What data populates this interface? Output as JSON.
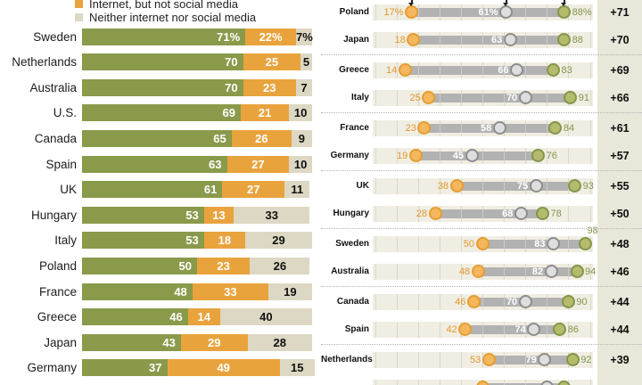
{
  "colors": {
    "green_bar": "#8a9a4b",
    "orange_bar": "#e9a33d",
    "beige_bar": "#dcd8c3",
    "strip_bg": "#f0eee3",
    "range_bar": "#b2b2b2",
    "diff_band_bg": "#e9e7d9",
    "orange_dot": "#e59d32",
    "gray_dot": "#8d8d8d",
    "green_dot": "#85954a"
  },
  "chart_data": [
    {
      "type": "bar",
      "orientation": "horizontal",
      "stacked": true,
      "xlim": [
        0,
        100
      ],
      "grid": false,
      "legend_position": "top",
      "legend": [
        {
          "label": "Internet, but not social media",
          "color_hex": "#e9a33d"
        },
        {
          "label": "Neither internet nor social media",
          "color_hex": "#dcd8c3"
        }
      ],
      "categories": [
        "Sweden",
        "Netherlands",
        "Australia",
        "U.S.",
        "Canada",
        "Spain",
        "UK",
        "Hungary",
        "Italy",
        "Poland",
        "France",
        "Greece",
        "Japan",
        "Germany"
      ],
      "series": [
        {
          "name": "green-segment",
          "color_hex": "#8a9a4b",
          "values": [
            71,
            70,
            70,
            69,
            65,
            63,
            61,
            53,
            53,
            50,
            48,
            46,
            43,
            37
          ]
        },
        {
          "name": "Internet, but not social media",
          "color_hex": "#e9a33d",
          "values": [
            22,
            25,
            23,
            21,
            26,
            27,
            27,
            13,
            18,
            23,
            33,
            14,
            29,
            49
          ]
        },
        {
          "name": "Neither internet nor social media",
          "color_hex": "#dcd8c3",
          "values": [
            7,
            5,
            7,
            10,
            9,
            10,
            11,
            33,
            29,
            26,
            19,
            40,
            28,
            15
          ]
        }
      ],
      "value_labels": [
        [
          "71%",
          "22%",
          "7%"
        ],
        [
          "70",
          "25",
          "5"
        ],
        [
          "70",
          "23",
          "7"
        ],
        [
          "69",
          "21",
          "10"
        ],
        [
          "65",
          "26",
          "9"
        ],
        [
          "63",
          "27",
          "10"
        ],
        [
          "61",
          "27",
          "11"
        ],
        [
          "53",
          "13",
          "33"
        ],
        [
          "53",
          "18",
          "29"
        ],
        [
          "50",
          "23",
          "26"
        ],
        [
          "48",
          "33",
          "19"
        ],
        [
          "46",
          "14",
          "40"
        ],
        [
          "43",
          "29",
          "28"
        ],
        [
          "37",
          "49",
          "15"
        ]
      ]
    },
    {
      "type": "scatter",
      "subtype": "dot-plot-range",
      "xlim": [
        0,
        100
      ],
      "categories": [
        "Poland",
        "Japan",
        "Greece",
        "Italy",
        "France",
        "Germany",
        "UK",
        "Hungary",
        "Sweden",
        "Australia",
        "Canada",
        "Spain",
        "Netherlands"
      ],
      "series": [
        {
          "name": "orange-dot",
          "color_hex": "#e59d32",
          "values": [
            17,
            18,
            14,
            25,
            23,
            19,
            38,
            28,
            50,
            48,
            46,
            42,
            53
          ]
        },
        {
          "name": "gray-dot",
          "color_hex": "#8d8d8d",
          "values": [
            61,
            63,
            66,
            70,
            58,
            45,
            75,
            68,
            83,
            82,
            70,
            74,
            79
          ]
        },
        {
          "name": "green-dot",
          "color_hex": "#85954a",
          "values": [
            88,
            88,
            83,
            91,
            84,
            76,
            93,
            78,
            98,
            94,
            90,
            86,
            92
          ]
        }
      ],
      "dot_labels": [
        [
          "17%",
          "61%",
          "88%"
        ],
        [
          "18",
          "63",
          "88"
        ],
        [
          "14",
          "66",
          "83"
        ],
        [
          "25",
          "70",
          "91"
        ],
        [
          "23",
          "58",
          "84"
        ],
        [
          "19",
          "45",
          "76"
        ],
        [
          "38",
          "75",
          "93"
        ],
        [
          "28",
          "68",
          "78"
        ],
        [
          "50",
          "83",
          "98"
        ],
        [
          "48",
          "82",
          "94"
        ],
        [
          "46",
          "70",
          "90"
        ],
        [
          "42",
          "74",
          "86"
        ],
        [
          "53",
          "79",
          "92"
        ]
      ],
      "diff_labels": [
        "+71",
        "+70",
        "+69",
        "+66",
        "+61",
        "+57",
        "+55",
        "+50",
        "+48",
        "+46",
        "+44",
        "+44",
        "+39"
      ],
      "group_separators_after_rows": [
        2,
        4,
        6,
        8,
        10,
        12
      ],
      "partial_bottom_row": {
        "orange": 50,
        "gray": 80,
        "green": 88
      }
    }
  ]
}
